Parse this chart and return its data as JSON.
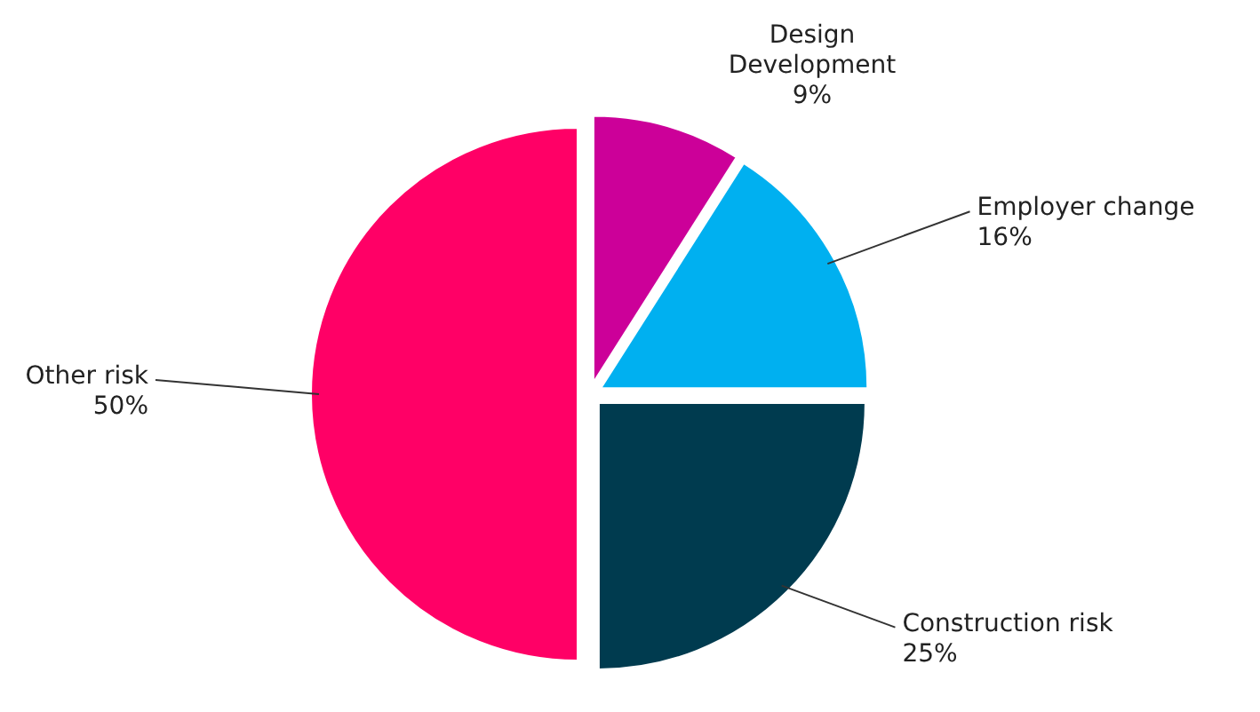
{
  "chart_data": {
    "type": "pie",
    "categories": [
      "Design Development",
      "Employer change",
      "Construction risk",
      "Other risk"
    ],
    "values": [
      9,
      16,
      25,
      50
    ],
    "colors": [
      "#cc0099",
      "#00b0f0",
      "#003b4f",
      "#ff0066"
    ],
    "value_labels": [
      "9%",
      "16%",
      "25%",
      "50%"
    ]
  }
}
